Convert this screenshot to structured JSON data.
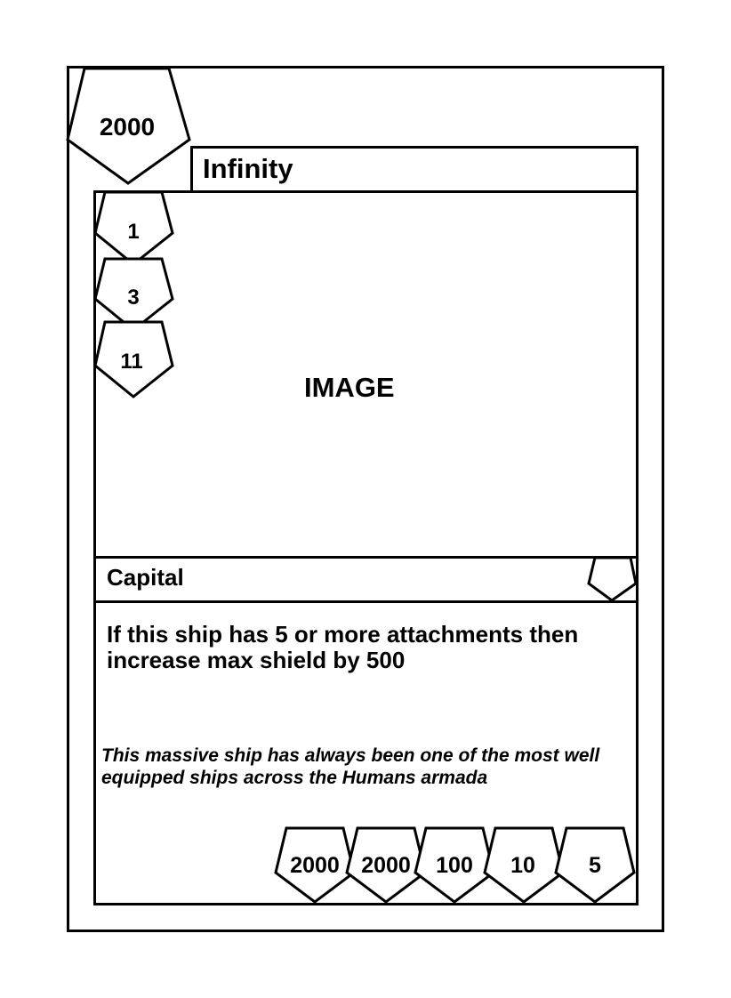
{
  "card": {
    "cost": "2000",
    "name": "Infinity",
    "image_placeholder": "IMAGE",
    "side_badges": [
      "1",
      "3",
      "11"
    ],
    "type_line": "Capital",
    "type_icon_text": "",
    "ability_text": "If this ship has 5 or more attachments then increase max shield by 500",
    "flavor_text": "This massive ship has always been one of the most well equipped ships across the Humans armada",
    "stats": [
      "2000",
      "2000",
      "100",
      "10",
      "5"
    ]
  }
}
